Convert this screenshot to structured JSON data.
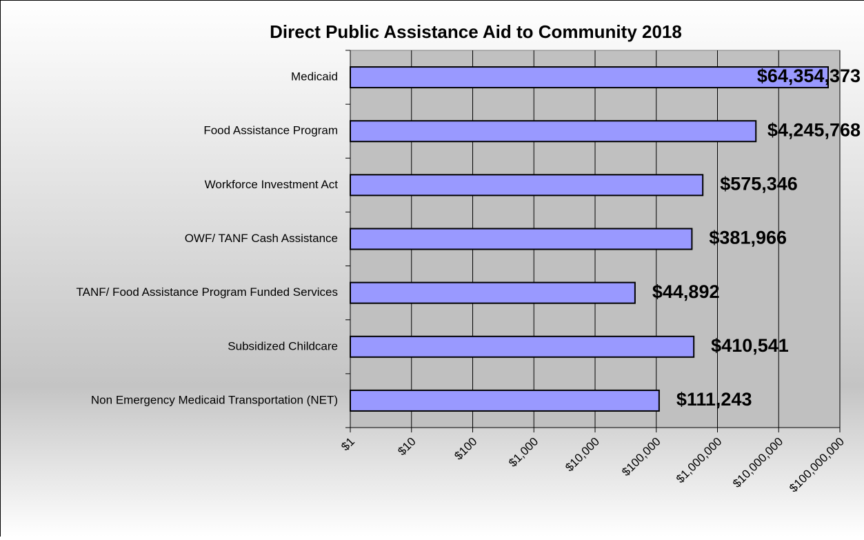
{
  "chart_data": {
    "type": "bar",
    "orientation": "horizontal",
    "title": "Direct Public Assistance Aid to Community  2018",
    "categories": [
      "Medicaid",
      "Food Assistance Program",
      "Workforce Investment Act",
      "OWF/ TANF Cash Assistance",
      "TANF/ Food Assistance Program Funded Services",
      "Subsidized Childcare",
      "Non Emergency Medicaid Transportation (NET)"
    ],
    "values": [
      64354373,
      4245768,
      575346,
      381966,
      44892,
      410541,
      111243
    ],
    "value_labels": [
      "$64,354,373",
      "$4,245,768",
      "$575,346",
      "$381,966",
      "$44,892",
      "$410,541",
      "$111,243"
    ],
    "color": "#9999ff",
    "xscale": "log",
    "xlim": [
      1,
      100000000
    ],
    "xticks": [
      {
        "value": 1,
        "label": "$1"
      },
      {
        "value": 10,
        "label": "$10"
      },
      {
        "value": 100,
        "label": "$100"
      },
      {
        "value": 1000,
        "label": "$1,000"
      },
      {
        "value": 10000,
        "label": "$10,000"
      },
      {
        "value": 100000,
        "label": "$100,000"
      },
      {
        "value": 1000000,
        "label": "$1,000,000"
      },
      {
        "value": 10000000,
        "label": "$10,000,000"
      },
      {
        "value": 100000000,
        "label": "$100,000,000"
      }
    ],
    "grid": true
  }
}
